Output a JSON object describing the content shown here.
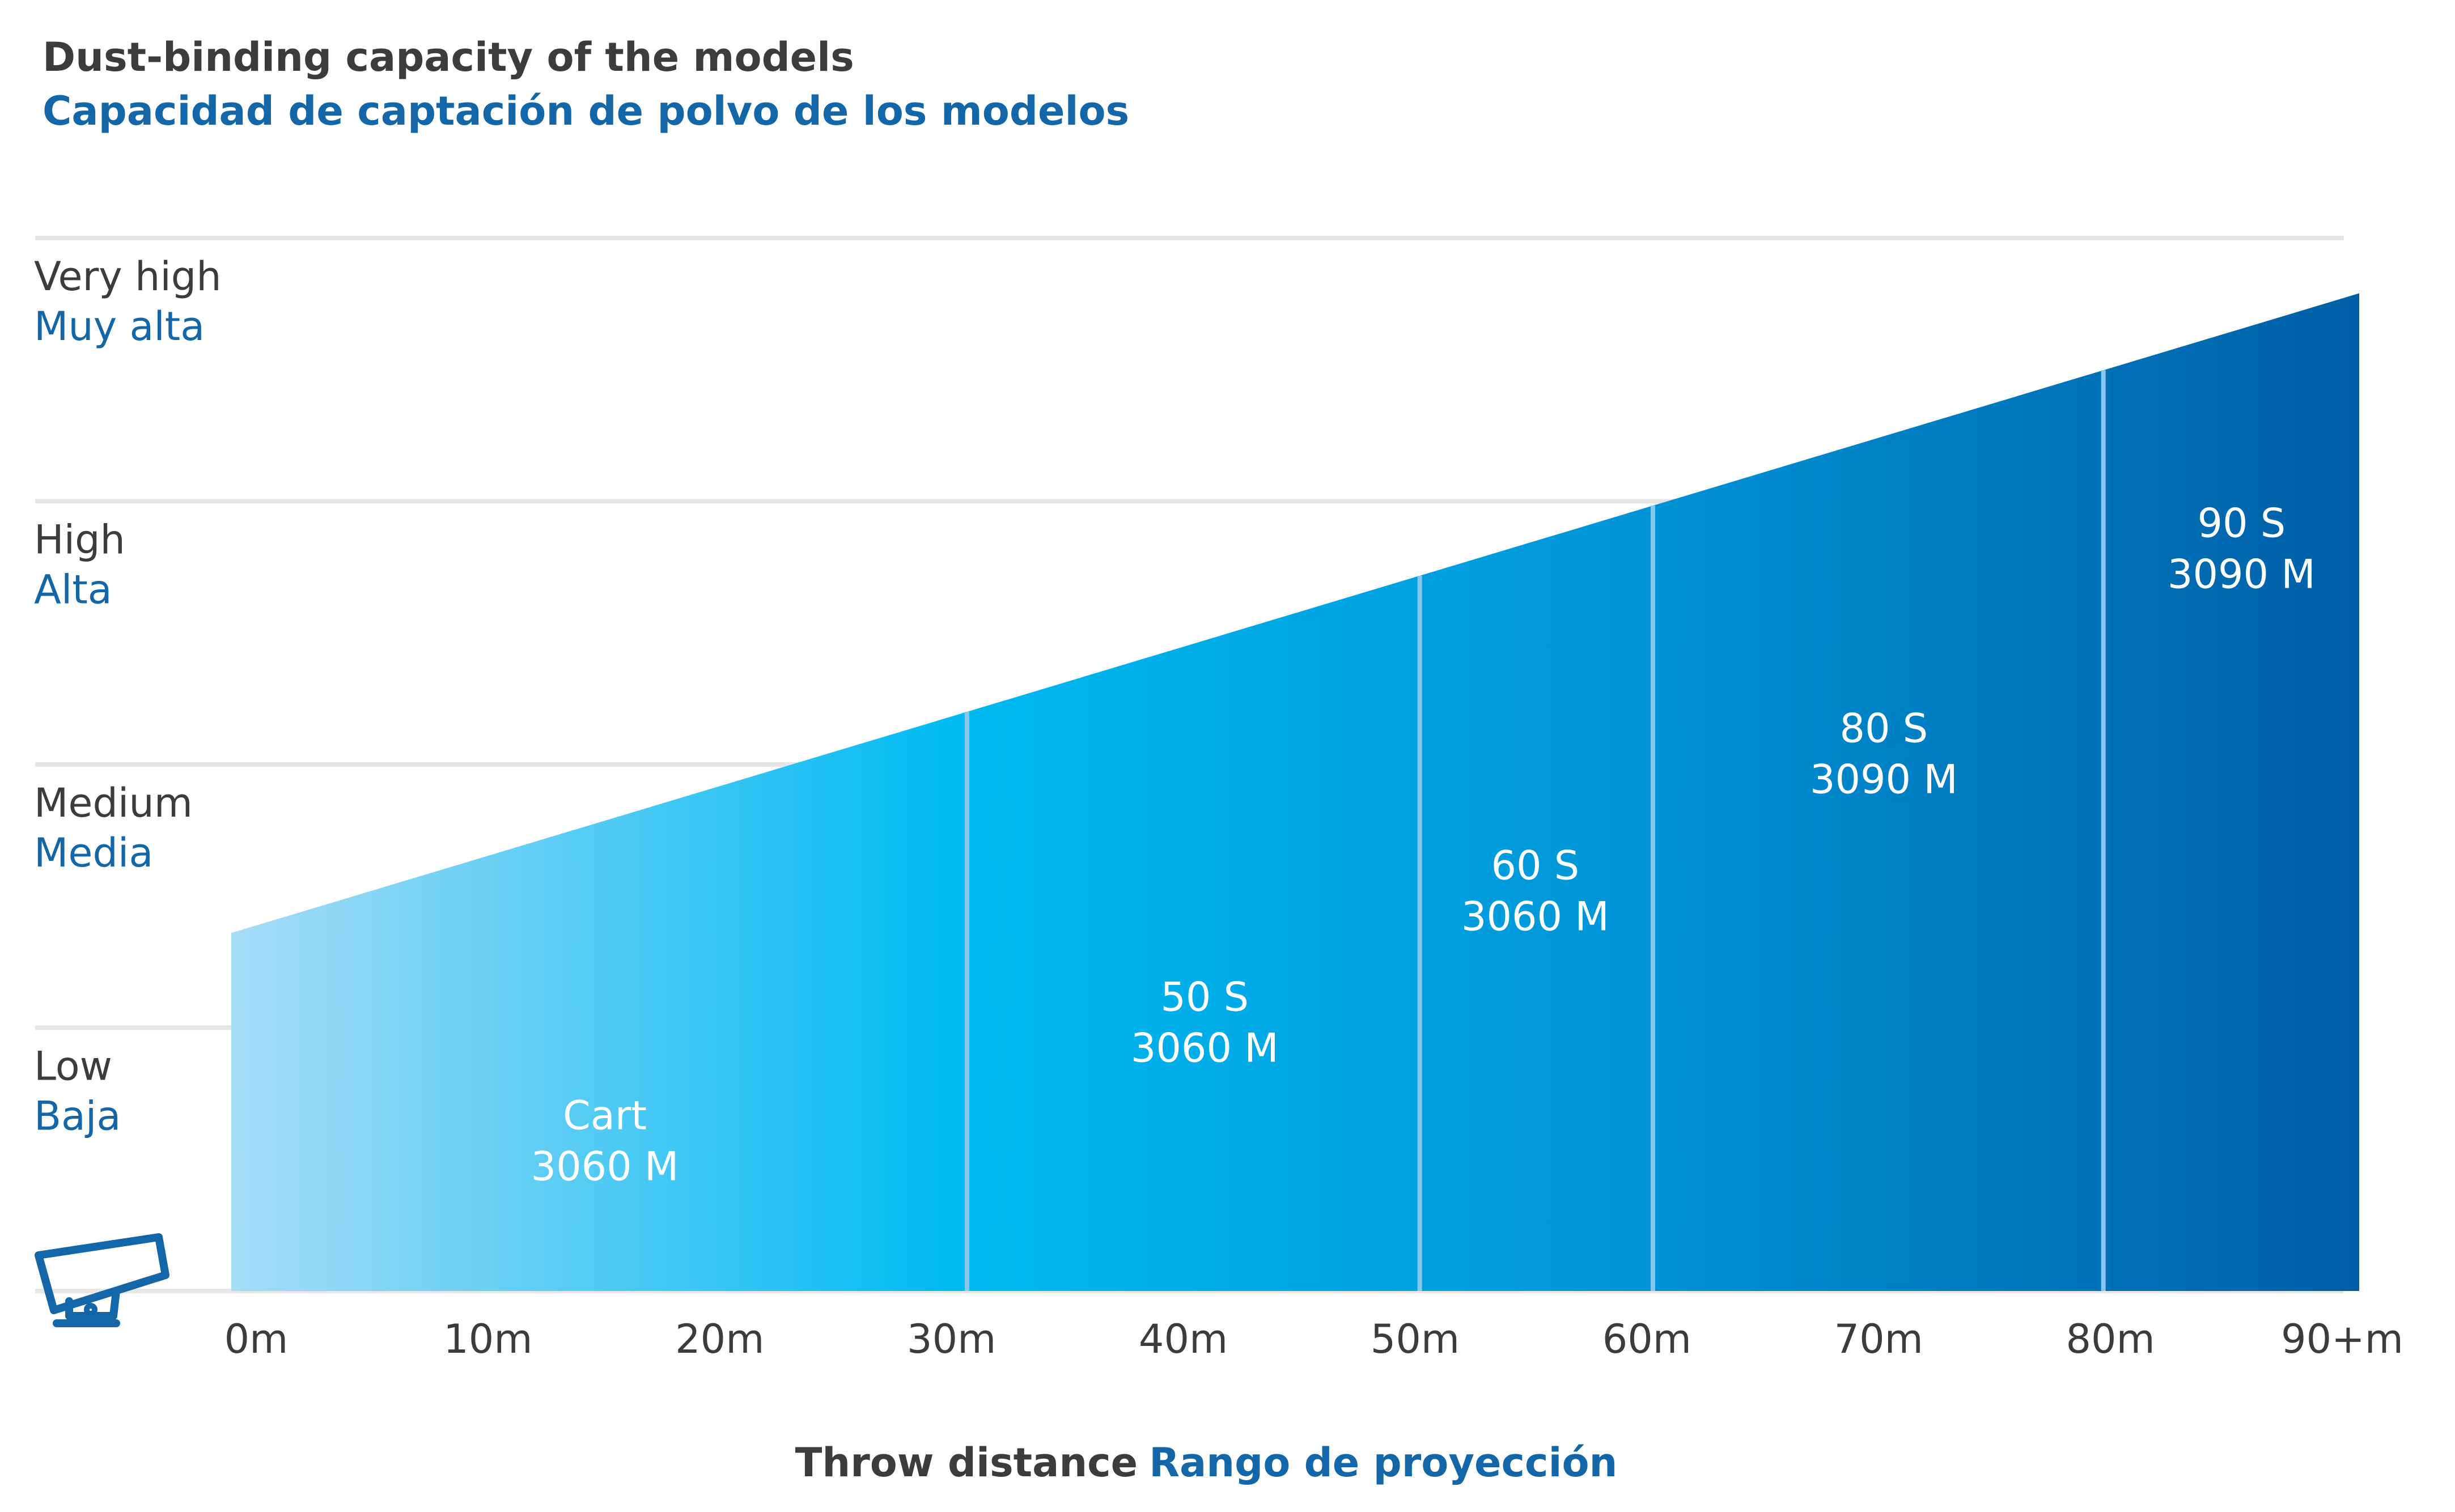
{
  "chart_data": {
    "type": "area",
    "title": "Dust-binding capacity of the models",
    "subtitle": "Capacidad de captación de polvo de los modelos",
    "xlabel": "Throw distance",
    "xlabel_es": "Rango de proyección",
    "x_ticks": [
      "0m",
      "10m",
      "20m",
      "30m",
      "40m",
      "50m",
      "60m",
      "70m",
      "80m",
      "90+m"
    ],
    "y_levels": [
      {
        "en": "Very high",
        "es": "Muy alta"
      },
      {
        "en": "High",
        "es": "Alta"
      },
      {
        "en": "Medium",
        "es": "Media"
      },
      {
        "en": "Low",
        "es": "Baja"
      }
    ],
    "ylim": [
      0,
      4
    ],
    "xlim": [
      0,
      94
    ],
    "capacity_line": {
      "x": [
        0,
        94
      ],
      "y": [
        1.36,
        3.79
      ]
    },
    "segment_boundaries": [
      32.5,
      52.5,
      62.8,
      82.7
    ],
    "segments": [
      {
        "line1": "Cart",
        "line2": "3060 M",
        "x_center": 16.5,
        "y_level": 0.55
      },
      {
        "line1": "50 S",
        "line2": "3060 M",
        "x_center": 43.0,
        "y_level": 1.0
      },
      {
        "line1": "60 S",
        "line2": "3060 M",
        "x_center": 57.6,
        "y_level": 1.5
      },
      {
        "line1": "80 S",
        "line2": "3090 M",
        "x_center": 73.0,
        "y_level": 2.02
      },
      {
        "line1": "90 S",
        "line2": "3090 M",
        "x_center": 88.8,
        "y_level": 2.8
      }
    ],
    "colors": {
      "gradient_stops": [
        "#a6dcf6",
        "#00baf2",
        "#0094d6",
        "#005ea6"
      ],
      "divider": "#86c7ec",
      "grid": "#e6e6e6",
      "icon": "#1366a8"
    },
    "grid": true,
    "icon": "snow-cannon-icon"
  }
}
